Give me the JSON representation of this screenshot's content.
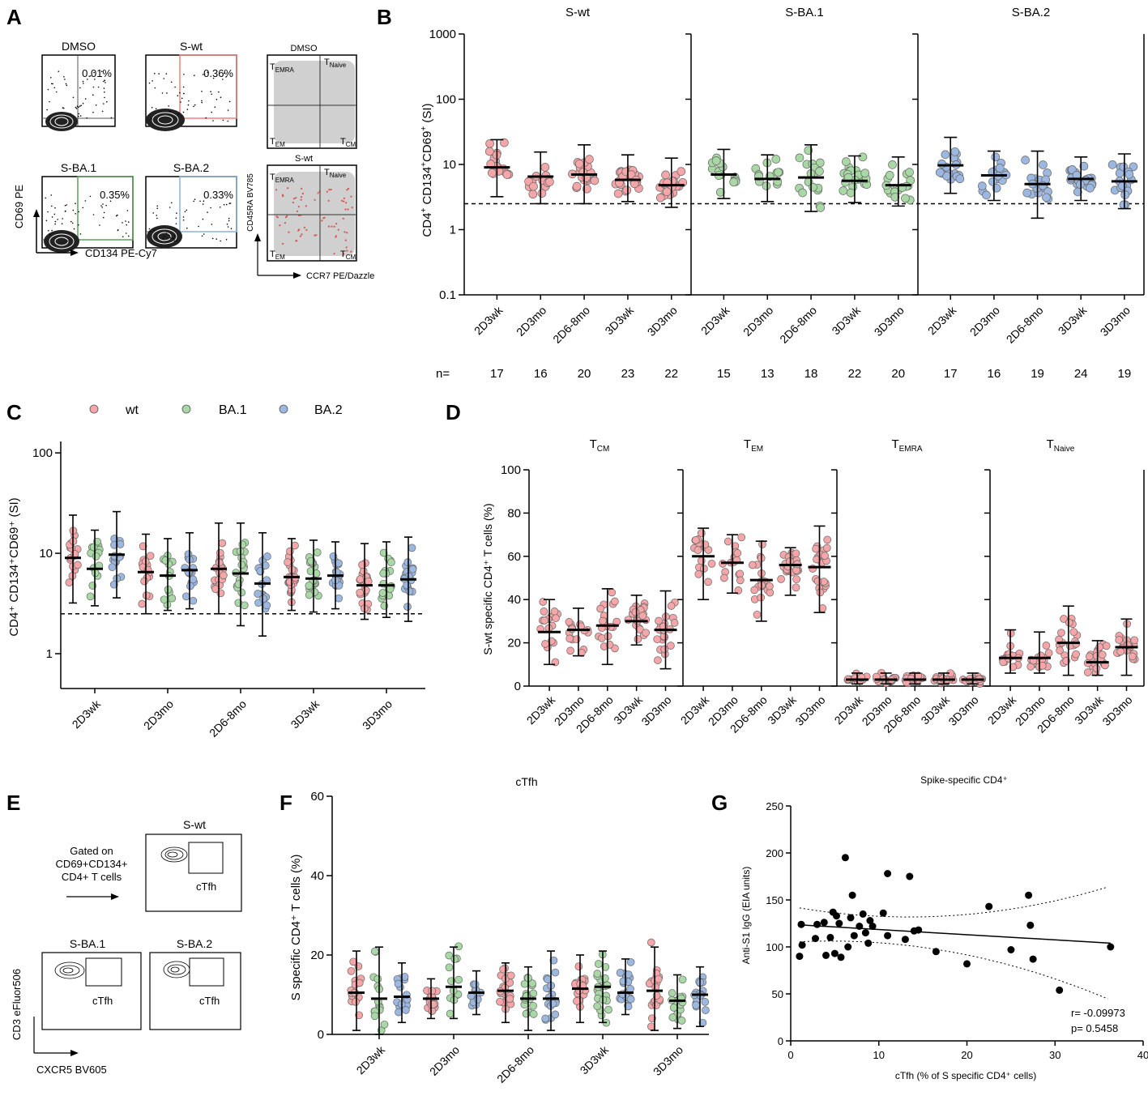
{
  "figure": {
    "colors": {
      "wt": "#f4a6a8",
      "ba1": "#a9d8a6",
      "ba2": "#9db8e0",
      "grey": "#bdbdbd",
      "red_gate": "#ef8080",
      "green_gate": "#5da05d",
      "blue_gate": "#8fb1dc"
    },
    "panel_labels": {
      "a": "A",
      "b": "B",
      "c": "C",
      "d": "D",
      "e": "E",
      "f": "F",
      "g": "G"
    }
  },
  "panelA": {
    "plots": [
      {
        "title": "DMSO",
        "pct": "0.01%",
        "gate": "none"
      },
      {
        "title": "S-wt",
        "pct": "0.36%",
        "gate": "red"
      },
      {
        "title": "S-BA.1",
        "pct": "0.35%",
        "gate": "green"
      },
      {
        "title": "S-BA.2",
        "pct": "0.33%",
        "gate": "blue"
      }
    ],
    "ylabel": "CD69 PE",
    "xlabel": "CD134 PE-Cy7",
    "memory": {
      "plots": [
        {
          "title": "DMSO"
        },
        {
          "title": "S-wt"
        }
      ],
      "quadrants": {
        "temra": "EMRA",
        "tnaive": "Naive",
        "tem": "EM",
        "tcm": "CM",
        "t": "T"
      },
      "ylabel": "CD45RA BV785",
      "xlabel": "CCR7 PE/Dazzle"
    }
  },
  "panelB": {
    "ylabel_main": "CD4",
    "ylabel_rest": " CD134",
    "ylabel_rest2": "CD69",
    "ylabel_end": " (SI)",
    "sup": "+",
    "n_label": "n=",
    "yticks": [
      "0.1",
      "1",
      "10",
      "100",
      "1000"
    ],
    "chart_data": {
      "type": "scatter",
      "scale": "log",
      "ylim": [
        0.1,
        1000
      ],
      "threshold": 2.5,
      "categories": [
        "2D3wk",
        "2D3mo",
        "2D6-8mo",
        "3D3wk",
        "3D3mo"
      ],
      "subpanels": [
        {
          "title": "S-wt",
          "color": "wt",
          "n": [
            "17",
            "16",
            "20",
            "23",
            "22"
          ],
          "median": [
            9,
            6.5,
            7,
            5.8,
            4.8
          ],
          "q_low": [
            3.2,
            2.5,
            2.5,
            2.7,
            2.2
          ],
          "q_high": [
            24,
            15.5,
            20,
            14,
            12.5
          ]
        },
        {
          "title": "S-BA.1",
          "color": "ba1",
          "n": [
            "15",
            "13",
            "18",
            "22",
            "20"
          ],
          "median": [
            7,
            6,
            6.3,
            5.6,
            4.8
          ],
          "q_low": [
            3,
            2.7,
            1.9,
            2.6,
            2.3
          ],
          "q_high": [
            17,
            14,
            20,
            13.5,
            13
          ]
        },
        {
          "title": "S-BA.2",
          "color": "ba2",
          "n": [
            "17",
            "16",
            "19",
            "24",
            "19"
          ],
          "median": [
            9.7,
            6.8,
            5,
            6,
            5.5
          ],
          "q_low": [
            3.6,
            2.8,
            1.5,
            2.8,
            2.1
          ],
          "q_high": [
            26,
            16,
            16,
            13,
            14.5
          ]
        }
      ]
    }
  },
  "panelC": {
    "legend": [
      "wt",
      "BA.1",
      "BA.2"
    ],
    "ylabel": "CD4⁺ CD134⁺CD69⁺ (SI)",
    "yticks": [
      "1",
      "10",
      "100"
    ],
    "chart_data": {
      "type": "scatter",
      "scale": "log",
      "ylim": [
        0.5,
        130
      ],
      "threshold": 2.5,
      "categories": [
        "2D3wk",
        "2D3mo",
        "2D6-8mo",
        "3D3wk",
        "3D3mo"
      ],
      "series": [
        {
          "name": "wt",
          "median": [
            9,
            6.5,
            7,
            5.8,
            4.8
          ],
          "q_low": [
            3.2,
            2.5,
            2.5,
            2.7,
            2.2
          ],
          "q_high": [
            24,
            15.5,
            20,
            14,
            12.5
          ]
        },
        {
          "name": "BA.1",
          "median": [
            7,
            6,
            6.3,
            5.6,
            4.8
          ],
          "q_low": [
            3,
            2.7,
            1.9,
            2.6,
            2.3
          ],
          "q_high": [
            17,
            14,
            20,
            13.5,
            13
          ]
        },
        {
          "name": "BA.2",
          "median": [
            9.7,
            6.8,
            5,
            6,
            5.5
          ],
          "q_low": [
            3.6,
            2.8,
            1.5,
            2.8,
            2.1
          ],
          "q_high": [
            26,
            16,
            16,
            13,
            14.5
          ]
        }
      ]
    }
  },
  "panelD": {
    "ylabel": "S-wt specific CD4⁺ T cells (%)",
    "yticks": [
      "0",
      "20",
      "40",
      "60",
      "80",
      "100"
    ],
    "chart_data": {
      "type": "scatter",
      "ylim": [
        0,
        100
      ],
      "categories": [
        "2D3wk",
        "2D3mo",
        "2D6-8mo",
        "3D3wk",
        "3D3mo"
      ],
      "subpanels": [
        {
          "title": "T",
          "sub": "CM",
          "median": [
            25,
            26,
            28,
            30,
            26
          ],
          "q_low": [
            10,
            14,
            10,
            19,
            8
          ],
          "q_high": [
            40,
            36,
            45,
            42,
            44
          ]
        },
        {
          "title": "T",
          "sub": "EM",
          "median": [
            60,
            57,
            49,
            56,
            55
          ],
          "q_low": [
            40,
            43,
            30,
            42,
            34
          ],
          "q_high": [
            73,
            70,
            67,
            64,
            74
          ]
        },
        {
          "title": "T",
          "sub": "EMRA",
          "median": [
            3,
            3,
            3,
            3,
            3
          ],
          "q_low": [
            1,
            1,
            1,
            1,
            1
          ],
          "q_high": [
            6,
            6,
            6,
            6,
            6
          ]
        },
        {
          "title": "T",
          "sub": "Naive",
          "median": [
            13,
            13,
            20,
            11,
            18
          ],
          "q_low": [
            6,
            6,
            5,
            5,
            5
          ],
          "q_high": [
            26,
            25,
            37,
            21,
            31
          ]
        }
      ]
    }
  },
  "panelE": {
    "plots": [
      {
        "title": "S-wt",
        "gate": "cTfh"
      },
      {
        "title": "S-BA.1",
        "gate": "cTfh"
      },
      {
        "title": "S-BA.2",
        "gate": "cTfh"
      }
    ],
    "gated_text": [
      "Gated on",
      "CD69+CD134+",
      "CD4+ T cells"
    ],
    "ylabel": "CD3 eFluor506",
    "xlabel": "CXCR5 BV605"
  },
  "panelF": {
    "title": "cTfh",
    "ylabel": "S specific CD4⁺ T cells (%)",
    "yticks": [
      "0",
      "20",
      "40",
      "60"
    ],
    "chart_data": {
      "type": "scatter",
      "ylim": [
        0,
        60
      ],
      "categories": [
        "2D3wk",
        "2D3mo",
        "2D6-8mo",
        "3D3wk",
        "3D3mo"
      ],
      "series": [
        {
          "name": "wt",
          "median": [
            10.5,
            9,
            11,
            11.5,
            11
          ],
          "q_low": [
            1,
            4,
            3,
            3,
            1
          ],
          "q_high": [
            21,
            14,
            18,
            20,
            22
          ]
        },
        {
          "name": "BA.1",
          "median": [
            9,
            12,
            9,
            12,
            8.5
          ],
          "q_low": [
            0,
            4,
            1,
            3,
            1.5
          ],
          "q_high": [
            22,
            22,
            17,
            21,
            15
          ]
        },
        {
          "name": "BA.2",
          "median": [
            9.5,
            10.5,
            9,
            10.5,
            10
          ],
          "q_low": [
            3,
            5,
            1,
            5,
            2
          ],
          "q_high": [
            18,
            16,
            21,
            19,
            17
          ]
        }
      ]
    }
  },
  "panelG": {
    "title": "Spike-specific CD4⁺",
    "xlabel": "cTfh (% of S specific CD4⁺ cells)",
    "ylabel": "Anti-S1 IgG (EIA units)",
    "r_text": "r= -0.09973",
    "p_text": "p= 0.5458",
    "xticks": [
      "0",
      "10",
      "20",
      "30",
      "40"
    ],
    "yticks": [
      "0",
      "50",
      "100",
      "150",
      "200",
      "250"
    ],
    "chart_data": {
      "type": "scatter",
      "xlim": [
        0,
        40
      ],
      "ylim": [
        0,
        250
      ],
      "x": [
        1,
        1.2,
        1.3,
        2.8,
        3,
        3.8,
        4,
        4.5,
        4.8,
        5,
        5.2,
        5.5,
        5.7,
        6.2,
        6.5,
        6.8,
        7,
        7.2,
        7.8,
        8.2,
        8.5,
        8.8,
        9,
        9.3,
        10.5,
        11,
        11,
        13,
        13.5,
        14,
        14.5,
        16.5,
        20,
        22.5,
        25,
        27,
        27.2,
        27.5,
        30.5,
        36.3
      ],
      "y": [
        90,
        124,
        102,
        109,
        124,
        126,
        91,
        110,
        137,
        93,
        133,
        125,
        89,
        195,
        100,
        131,
        155,
        112,
        122,
        135,
        115,
        104,
        128,
        122,
        136,
        112,
        178,
        108,
        175,
        117,
        118,
        95,
        82,
        143,
        97,
        155,
        123,
        87,
        54,
        100
      ],
      "fit": {
        "slope": -0.55,
        "intercept": 124
      }
    }
  }
}
